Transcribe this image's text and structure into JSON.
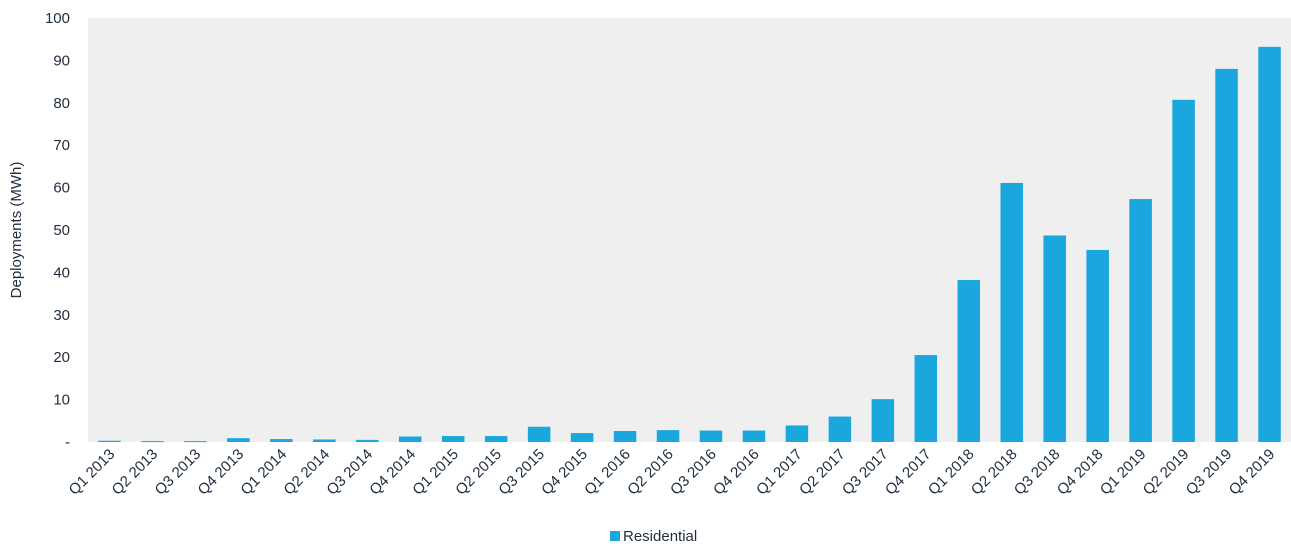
{
  "chart_data": {
    "type": "bar",
    "title": "",
    "xlabel": "",
    "ylabel": "Deployments (MWh)",
    "ylim": [
      0,
      100
    ],
    "yticks": [
      "-",
      "10",
      "20",
      "30",
      "40",
      "50",
      "60",
      "70",
      "80",
      "90",
      "100"
    ],
    "grid": false,
    "legend_position": "bottom-center",
    "colors": {
      "bar": "#1aa7dd",
      "plot_bg": "#efefef",
      "text": "#1f2d3d"
    },
    "categories": [
      "Q1 2013",
      "Q2 2013",
      "Q3 2013",
      "Q4 2013",
      "Q1 2014",
      "Q2 2014",
      "Q3 2014",
      "Q4 2014",
      "Q1 2015",
      "Q2 2015",
      "Q3 2015",
      "Q4 2015",
      "Q1 2016",
      "Q2 2016",
      "Q3 2016",
      "Q4 2016",
      "Q1 2017",
      "Q2 2017",
      "Q3 2017",
      "Q4 2017",
      "Q1 2018",
      "Q2 2018",
      "Q3 2018",
      "Q4 2018",
      "Q1 2019",
      "Q2 2019",
      "Q3 2019",
      "Q4 2019"
    ],
    "series": [
      {
        "name": "Residential",
        "values": [
          0.3,
          0.2,
          0.2,
          0.9,
          0.7,
          0.6,
          0.5,
          1.3,
          1.4,
          1.4,
          3.6,
          2.1,
          2.6,
          2.8,
          2.7,
          2.7,
          3.9,
          6.0,
          10.1,
          20.5,
          38.2,
          61.1,
          48.7,
          45.3,
          57.3,
          80.7,
          88.0,
          93.2
        ]
      }
    ]
  }
}
